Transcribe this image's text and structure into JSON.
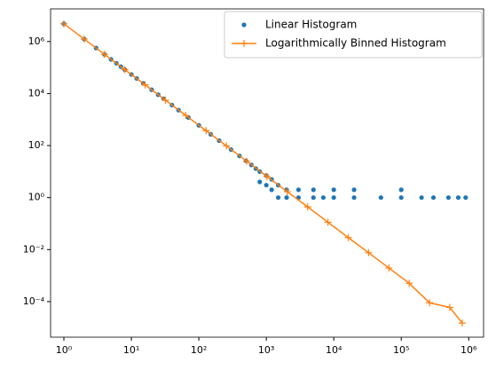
{
  "chart_data": {
    "type": "line",
    "xscale": "log",
    "yscale": "log",
    "xlim": [
      0.635,
      1660000
    ],
    "ylim": [
      4.3e-06,
      18000000
    ],
    "xticks": [
      {
        "value": 1,
        "label": "10⁰"
      },
      {
        "value": 10,
        "label": "10¹"
      },
      {
        "value": 100,
        "label": "10²"
      },
      {
        "value": 1000,
        "label": "10³"
      },
      {
        "value": 10000,
        "label": "10⁴"
      },
      {
        "value": 100000,
        "label": "10⁵"
      },
      {
        "value": 1000000,
        "label": "10⁶"
      }
    ],
    "yticks": [
      {
        "value": 0.0001,
        "label": "10⁻⁴"
      },
      {
        "value": 0.01,
        "label": "10⁻²"
      },
      {
        "value": 1,
        "label": "10⁰"
      },
      {
        "value": 100,
        "label": "10²"
      },
      {
        "value": 10000,
        "label": "10⁴"
      },
      {
        "value": 1000000,
        "label": "10⁶"
      }
    ],
    "legend": "upper right",
    "series": [
      {
        "name": "Linear Histogram",
        "color": "#1f77b4",
        "marker": "circle",
        "linestyle": "none",
        "x": [
          1,
          2,
          3,
          4,
          5,
          6,
          7,
          8,
          10,
          12,
          15,
          20,
          25,
          30,
          40,
          50,
          70,
          100,
          150,
          200,
          300,
          400,
          500,
          600,
          700,
          800,
          800,
          1000,
          1000,
          1200,
          1200,
          1500,
          1500,
          2000,
          2000,
          3000,
          3000,
          5000,
          5000,
          7000,
          10000,
          10000,
          20000,
          20000,
          50000,
          100000,
          100000,
          200000,
          300000,
          500000,
          700000,
          900000
        ],
        "values": [
          4800000,
          1240000,
          563000,
          320000,
          207000,
          146000,
          108000,
          83000,
          54000,
          38000,
          24500,
          14000,
          9000,
          6300,
          3600,
          2300,
          1200,
          600,
          270,
          155,
          70,
          40,
          26,
          18,
          13,
          10,
          4,
          7,
          3,
          5,
          2,
          3,
          1,
          2,
          1,
          2,
          1,
          1,
          2,
          1,
          1,
          2,
          1,
          2,
          1,
          1,
          2,
          1,
          1,
          1,
          1,
          1
        ]
      },
      {
        "name": "Logarithmically Binned Histogram",
        "color": "#ff7f0e",
        "marker": "plus",
        "linestyle": "solid",
        "x": [
          1,
          2,
          4,
          8,
          16,
          32,
          64,
          128,
          256,
          512,
          1024,
          2048,
          4096,
          8192,
          16384,
          32768,
          65536,
          131072,
          262144,
          524288,
          800000
        ],
        "values": [
          4800000,
          1240000,
          320000,
          83000,
          21600,
          5580,
          1445,
          374,
          97,
          25,
          6.5,
          1.68,
          0.44,
          0.113,
          0.029,
          0.0076,
          0.00196,
          0.00051,
          9e-05,
          6e-05,
          1.5e-05
        ]
      }
    ]
  }
}
